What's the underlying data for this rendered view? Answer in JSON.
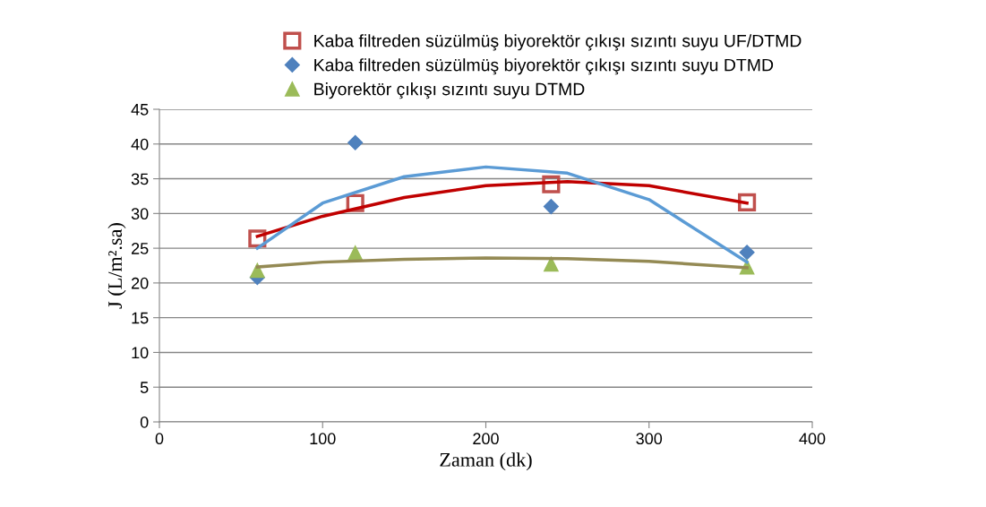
{
  "chart_data": {
    "type": "scatter",
    "xlabel": "Zaman (dk)",
    "ylabel": "J (L/m².sa)",
    "xlim": [
      0,
      400
    ],
    "xticks": [
      0,
      100,
      200,
      300,
      400
    ],
    "ylim": [
      0,
      45
    ],
    "yticks": [
      0,
      5,
      10,
      15,
      20,
      25,
      30,
      35,
      40,
      45
    ],
    "grid": "y",
    "legend": "top right",
    "series": [
      {
        "name": "Kaba filtreden süzülmüş biyorektör çıkışı sızıntı suyu UF/DTMD",
        "marker": "square",
        "color": "#c0504d",
        "x": [
          60,
          120,
          240,
          360
        ],
        "values": [
          26.4,
          31.5,
          34.2,
          31.6
        ]
      },
      {
        "name": "Kaba filtreden süzülmüş biyorektör çıkışı sızıntı suyu DTMD",
        "marker": "diamond",
        "color": "#4f81bd",
        "x": [
          60,
          120,
          240,
          360
        ],
        "values": [
          20.8,
          40.2,
          31.0,
          24.4
        ]
      },
      {
        "name": "Biyorektör çıkışı sızıntı suyu DTMD",
        "marker": "triangle",
        "color": "#9bbb59",
        "x": [
          60,
          120,
          240,
          360
        ],
        "values": [
          21.8,
          24.3,
          22.7,
          22.3
        ]
      },
      {
        "type": "line",
        "color": "#c00000",
        "x": [
          60,
          100,
          150,
          200,
          250,
          300,
          360
        ],
        "values": [
          26.7,
          29.6,
          32.3,
          34.0,
          34.6,
          34.0,
          31.5
        ]
      },
      {
        "type": "line",
        "color": "#5b9bd5",
        "x": [
          60,
          100,
          150,
          200,
          250,
          300,
          360
        ],
        "values": [
          25.0,
          31.5,
          35.3,
          36.7,
          35.8,
          32.0,
          23.0
        ]
      },
      {
        "type": "line",
        "color": "#948a54",
        "x": [
          60,
          100,
          150,
          200,
          250,
          300,
          360
        ],
        "values": [
          22.3,
          23.0,
          23.4,
          23.6,
          23.5,
          23.1,
          22.2
        ]
      }
    ]
  }
}
